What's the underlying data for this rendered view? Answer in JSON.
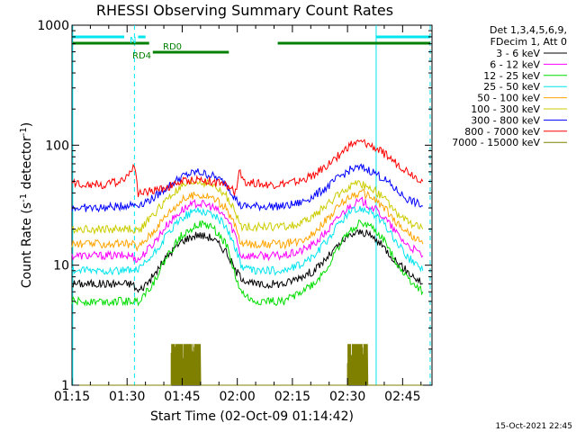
{
  "chart_data": {
    "type": "line",
    "title": "RHESSI Observing Summary Count Rates",
    "xlabel": "Start Time (02-Oct-09 01:14:42)",
    "ylabel": "Count Rate (s⁻¹ detector⁻¹)",
    "x_unit": "minutes",
    "x_range": [
      "01:15",
      "02:50"
    ],
    "xlim": [
      75,
      173
    ],
    "y_scale": "log",
    "ylim": [
      1,
      1000
    ],
    "x_ticks": [
      {
        "value": 75,
        "label": "01:15"
      },
      {
        "value": 90,
        "label": "01:30"
      },
      {
        "value": 105,
        "label": "01:45"
      },
      {
        "value": 120,
        "label": "02:00"
      },
      {
        "value": 135,
        "label": "02:15"
      },
      {
        "value": 150,
        "label": "02:30"
      },
      {
        "value": 165,
        "label": "02:45"
      }
    ],
    "y_ticks": [
      {
        "value": 1,
        "label": "1"
      },
      {
        "value": 10,
        "label": "10"
      },
      {
        "value": 100,
        "label": "100"
      },
      {
        "value": 1000,
        "label": "1000"
      }
    ],
    "legend": {
      "header": [
        "Det 1,3,4,5,6,9,",
        "FDecim 1, Att 0"
      ],
      "placement": "right"
    },
    "series": [
      {
        "name": "3 - 6 keV",
        "color": "#000000",
        "x": [
          75,
          84,
          88,
          91.5,
          93,
          97,
          101,
          105,
          109,
          113,
          117,
          119.5,
          121,
          124,
          127,
          130,
          133,
          137,
          141,
          145,
          148,
          151,
          154,
          157,
          160,
          163,
          166,
          170.5
        ],
        "y": [
          7,
          7,
          7,
          7,
          6,
          8,
          12,
          16,
          18,
          17,
          13,
          9,
          8,
          7,
          6.8,
          7,
          7,
          8,
          9,
          12,
          15,
          18,
          19,
          17,
          14,
          11,
          9,
          7
        ]
      },
      {
        "name": "6 - 12 keV",
        "color": "#ff00ff",
        "x": [
          75,
          84,
          88,
          91.5,
          93,
          97,
          101,
          105,
          109,
          113,
          117,
          119.5,
          121,
          124,
          127,
          130,
          133,
          137,
          141,
          145,
          148,
          151,
          154,
          157,
          160,
          163,
          166,
          170.5
        ],
        "y": [
          12,
          12,
          12,
          12,
          11,
          15,
          22,
          29,
          33,
          31,
          25,
          18,
          12,
          12,
          12,
          12,
          12,
          13,
          15,
          20,
          26,
          32,
          34,
          30,
          25,
          19,
          15,
          12
        ]
      },
      {
        "name": "12 - 25 keV",
        "color": "#00dd00",
        "x": [
          75,
          84,
          88,
          91.5,
          93,
          97,
          101,
          105,
          109,
          113,
          117,
          119.5,
          121,
          124,
          127,
          130,
          133,
          137,
          141,
          145,
          148,
          151,
          154,
          157,
          160,
          163,
          166,
          170.5
        ],
        "y": [
          5,
          5,
          5,
          5,
          5,
          7,
          12,
          18,
          22,
          21,
          15,
          8,
          6,
          5,
          5,
          5,
          5,
          6,
          7,
          10,
          15,
          20,
          23,
          20,
          16,
          11,
          8,
          6
        ]
      },
      {
        "name": "25 - 50 keV",
        "color": "#00e5ee",
        "x": [
          75,
          84,
          88,
          91.5,
          93,
          97,
          101,
          105,
          109,
          113,
          117,
          119.5,
          121,
          124,
          127,
          130,
          133,
          137,
          141,
          145,
          148,
          151,
          154,
          157,
          160,
          163,
          166,
          170.5
        ],
        "y": [
          9,
          9,
          9,
          9,
          9,
          12,
          18,
          25,
          29,
          27,
          21,
          14,
          10,
          9,
          9,
          9,
          9,
          10,
          12,
          17,
          23,
          28,
          30,
          27,
          22,
          16,
          12,
          9
        ]
      },
      {
        "name": "50 - 100 keV",
        "color": "#ffa500",
        "x": [
          75,
          84,
          88,
          91.5,
          93,
          97,
          101,
          105,
          109,
          113,
          117,
          119.5,
          121,
          124,
          127,
          130,
          133,
          137,
          141,
          145,
          148,
          151,
          154,
          157,
          160,
          163,
          166,
          170.5
        ],
        "y": [
          15,
          15,
          15,
          15,
          14,
          19,
          27,
          35,
          39,
          37,
          30,
          21,
          15,
          15,
          15,
          15,
          15,
          16,
          19,
          25,
          32,
          38,
          40,
          36,
          30,
          23,
          19,
          15
        ]
      },
      {
        "name": "100 - 300 keV",
        "color": "#cccc00",
        "x": [
          75,
          84,
          88,
          91.5,
          93,
          97,
          101,
          105,
          109,
          113,
          117,
          119.5,
          121,
          124,
          127,
          130,
          133,
          137,
          141,
          145,
          148,
          151,
          154,
          157,
          160,
          163,
          166,
          170.5
        ],
        "y": [
          20,
          20,
          20,
          20,
          19,
          26,
          36,
          45,
          50,
          47,
          38,
          27,
          21,
          21,
          21,
          21,
          21,
          22,
          26,
          33,
          40,
          46,
          47,
          43,
          36,
          28,
          23,
          20
        ]
      },
      {
        "name": "300 - 800 keV",
        "color": "#0000ff",
        "x": [
          75,
          84,
          88,
          91.5,
          93,
          97,
          101,
          105,
          109,
          113,
          117,
          119.5,
          121,
          124,
          127,
          130,
          133,
          137,
          141,
          145,
          148,
          151,
          154,
          157,
          160,
          163,
          166,
          170.5
        ],
        "y": [
          30,
          30,
          31,
          32,
          32,
          36,
          45,
          55,
          60,
          56,
          48,
          36,
          31,
          31,
          31,
          31,
          31,
          33,
          38,
          46,
          55,
          63,
          65,
          60,
          52,
          43,
          36,
          31
        ]
      },
      {
        "name": "800 - 7000 keV",
        "color": "#ff0000",
        "x": [
          75,
          84,
          88,
          89.5,
          91,
          92,
          93,
          97,
          101,
          105,
          109,
          113,
          117,
          119.5,
          120.5,
          122,
          127,
          130,
          133,
          137,
          141,
          145,
          148,
          151,
          154,
          157,
          160,
          163,
          166,
          170.5
        ],
        "y": [
          48,
          47,
          50,
          55,
          60,
          65,
          40,
          42,
          45,
          50,
          52,
          50,
          46,
          40,
          60,
          50,
          47,
          47,
          48,
          50,
          57,
          70,
          85,
          102,
          106,
          97,
          85,
          72,
          62,
          50
        ]
      },
      {
        "name": "7000 - 15000 keV",
        "color": "#808000",
        "x": [
          75,
          89,
          100,
          102,
          108,
          110,
          111.5,
          148,
          149.5,
          152,
          155,
          156.5,
          170.5
        ],
        "y": [
          1,
          1,
          1,
          2.2,
          2.2,
          2.2,
          1,
          1,
          1,
          2.2,
          2.2,
          1,
          1
        ]
      }
    ],
    "vertical_lines": [
      {
        "x": 75.2,
        "style": "solid",
        "color": "#00e5ee"
      },
      {
        "x": 92.0,
        "style": "dashed",
        "color": "#00e5ee"
      },
      {
        "x": 157.8,
        "style": "solid",
        "color": "#00e5ee"
      },
      {
        "x": 172.5,
        "style": "dashed",
        "color": "#00e5ee"
      }
    ],
    "flag_bars": [
      {
        "name": "N",
        "color": "#00e5ee",
        "segments": [
          [
            75.2,
            89.2
          ],
          [
            93.0,
            95.0
          ],
          [
            157.8,
            172.5
          ]
        ]
      },
      {
        "name": "RD0",
        "color": "#008000",
        "segments": [
          [
            75.2,
            96.0
          ],
          [
            131.0,
            172.5
          ]
        ]
      },
      {
        "name": "RD4",
        "color": "#008000",
        "segments": [
          [
            97.0,
            117.7
          ]
        ]
      }
    ],
    "annotations": [
      {
        "text": "N",
        "color": "#00e5ee"
      },
      {
        "text": "RD0",
        "color": "#008000"
      },
      {
        "text": "RD4",
        "color": "#008000"
      }
    ]
  },
  "footer_date": "15-Oct-2021 22:45"
}
